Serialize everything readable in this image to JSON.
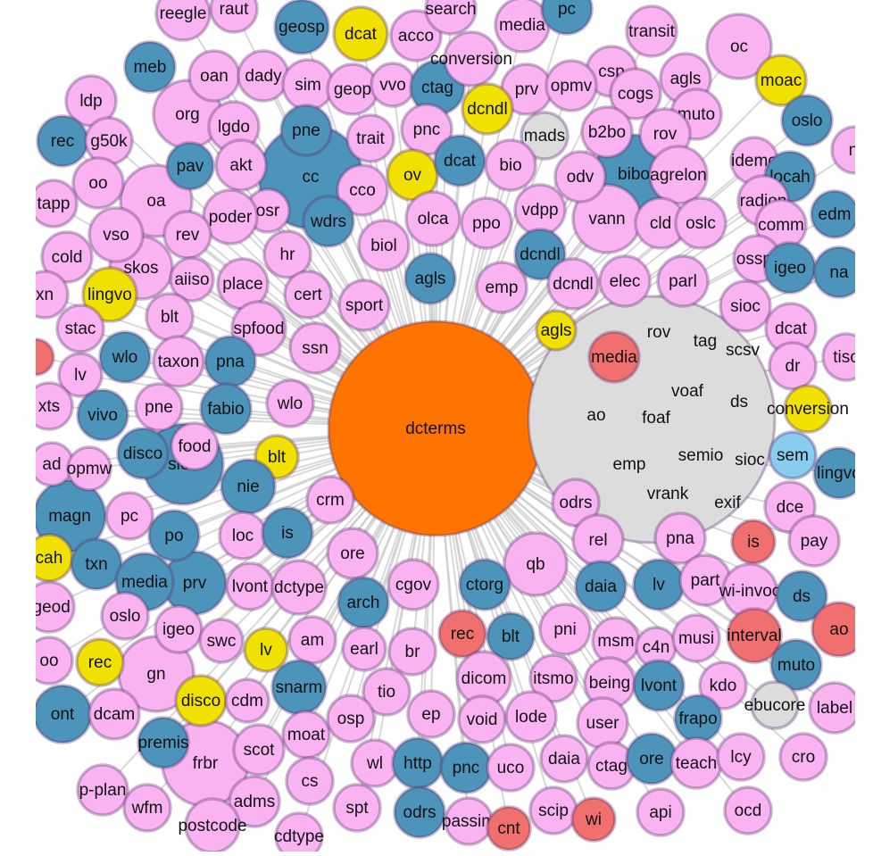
{
  "nodes": [
    {
      "label": "dcterms",
      "color": "#ff7400"
    },
    {
      "color": "#dcdcdc"
    },
    {
      "label": "cc",
      "color": "#4d94bb"
    },
    {
      "label": "frbr",
      "color": "#f9b3f0"
    },
    {
      "label": "sioc",
      "color": "#4d94bb"
    },
    {
      "label": "bibo",
      "color": "#4d94bb"
    },
    {
      "label": "gn",
      "color": "#f9b3f0"
    },
    {
      "label": "magn",
      "color": "#4d94bb"
    },
    {
      "label": "oa",
      "color": "#f9b3f0"
    },
    {
      "label": "org",
      "color": "#f9b3f0"
    },
    {
      "label": "vann",
      "color": "#f9b3f0"
    },
    {
      "label": "oc",
      "color": "#f9b3f0"
    },
    {
      "label": "skos",
      "color": "#f9b3f0"
    },
    {
      "label": "qb",
      "color": "#f9b3f0"
    },
    {
      "label": "prv",
      "color": "#4d94bb"
    },
    {
      "label": "reegle",
      "color": "#f9b3f0"
    },
    {
      "label": "raut",
      "color": "#f9b3f0"
    },
    {
      "label": "geosp",
      "color": "#4d94bb"
    },
    {
      "label": "dcat",
      "color": "#f1e100"
    },
    {
      "label": "acco",
      "color": "#f9b3f0"
    },
    {
      "label": "search",
      "color": "#f9b3f0"
    },
    {
      "label": "media",
      "color": "#f9b3f0"
    },
    {
      "label": "pc",
      "color": "#4d94bb"
    },
    {
      "label": "transit",
      "color": "#f9b3f0"
    },
    {
      "label": "meb",
      "color": "#4d94bb"
    },
    {
      "label": "oan",
      "color": "#f9b3f0"
    },
    {
      "label": "dady",
      "color": "#f9b3f0"
    },
    {
      "label": "sim",
      "color": "#f9b3f0"
    },
    {
      "label": "geop",
      "color": "#f9b3f0"
    },
    {
      "label": "vvo",
      "color": "#f9b3f0"
    },
    {
      "label": "ctag",
      "color": "#4d94bb"
    },
    {
      "label": "conversion",
      "color": "#f9b3f0"
    },
    {
      "label": "csp",
      "color": "#f9b3f0"
    },
    {
      "label": "agls",
      "color": "#f9b3f0"
    },
    {
      "label": "moac",
      "color": "#f1e100"
    },
    {
      "label": "ldp",
      "color": "#f9b3f0"
    },
    {
      "label": "prv",
      "color": "#f9b3f0"
    },
    {
      "label": "opmv",
      "color": "#f9b3f0"
    },
    {
      "label": "cogs",
      "color": "#f9b3f0"
    },
    {
      "label": "dcndl",
      "color": "#f1e100"
    },
    {
      "label": "muto",
      "color": "#f9b3f0"
    },
    {
      "label": "oslo",
      "color": "#4d94bb"
    },
    {
      "label": "mads",
      "color": "#dcdcdc"
    },
    {
      "label": "b2bo",
      "color": "#f9b3f0"
    },
    {
      "label": "rov",
      "color": "#f9b3f0"
    },
    {
      "label": "lgdo",
      "color": "#f9b3f0"
    },
    {
      "label": "pne",
      "color": "#4d94bb"
    },
    {
      "label": "trait",
      "color": "#f9b3f0"
    },
    {
      "label": "pnc",
      "color": "#f9b3f0"
    },
    {
      "label": "rec",
      "color": "#4d94bb"
    },
    {
      "label": "g50k",
      "color": "#f9b3f0"
    },
    {
      "label": "ni",
      "color": "#f9b3f0"
    },
    {
      "label": "pav",
      "color": "#4d94bb"
    },
    {
      "label": "akt",
      "color": "#f9b3f0"
    },
    {
      "label": "oo",
      "color": "#f9b3f0"
    },
    {
      "label": "cco",
      "color": "#f9b3f0"
    },
    {
      "label": "ov",
      "color": "#f1e100"
    },
    {
      "label": "dcat",
      "color": "#4d94bb"
    },
    {
      "label": "bio",
      "color": "#f9b3f0"
    },
    {
      "label": "odv",
      "color": "#f9b3f0"
    },
    {
      "label": "agrelon",
      "color": "#f9b3f0"
    },
    {
      "label": "idemo",
      "color": "#f9b3f0"
    },
    {
      "label": "locah",
      "color": "#4d94bb"
    },
    {
      "label": "tapp",
      "color": "#f9b3f0"
    },
    {
      "label": "osr",
      "color": "#f9b3f0"
    },
    {
      "label": "poder",
      "color": "#f9b3f0"
    },
    {
      "label": "wdrs",
      "color": "#4d94bb"
    },
    {
      "label": "olca",
      "color": "#f9b3f0"
    },
    {
      "label": "ppo",
      "color": "#f9b3f0"
    },
    {
      "label": "vdpp",
      "color": "#f9b3f0"
    },
    {
      "label": "cld",
      "color": "#f9b3f0"
    },
    {
      "label": "oslc",
      "color": "#f9b3f0"
    },
    {
      "label": "radion",
      "color": "#f9b3f0"
    },
    {
      "label": "comm",
      "color": "#f9b3f0"
    },
    {
      "label": "edm",
      "color": "#4d94bb"
    },
    {
      "label": "vso",
      "color": "#f9b3f0"
    },
    {
      "label": "rev",
      "color": "#f9b3f0"
    },
    {
      "label": "cold",
      "color": "#f9b3f0"
    },
    {
      "label": "hr",
      "color": "#f9b3f0"
    },
    {
      "label": "biol",
      "color": "#f9b3f0"
    },
    {
      "label": "dcndl",
      "color": "#4d94bb"
    },
    {
      "label": "osspr",
      "color": "#f9b3f0"
    },
    {
      "label": "igeo",
      "color": "#4d94bb"
    },
    {
      "label": "na",
      "color": "#4d94bb"
    },
    {
      "label": "lingvo",
      "color": "#f1e100"
    },
    {
      "label": "aiiso",
      "color": "#f9b3f0"
    },
    {
      "label": "place",
      "color": "#f9b3f0"
    },
    {
      "label": "cert",
      "color": "#f9b3f0"
    },
    {
      "label": "sport",
      "color": "#f9b3f0"
    },
    {
      "label": "agls",
      "color": "#4d94bb"
    },
    {
      "label": "emp",
      "color": "#f9b3f0"
    },
    {
      "label": "dcndl",
      "color": "#f9b3f0"
    },
    {
      "label": "elec",
      "color": "#f9b3f0"
    },
    {
      "label": "parl",
      "color": "#f9b3f0"
    },
    {
      "label": "sioc",
      "color": "#f9b3f0"
    },
    {
      "label": "xn",
      "color": "#f9b3f0"
    },
    {
      "label": "stac",
      "color": "#f9b3f0"
    },
    {
      "label": "blt",
      "color": "#f9b3f0"
    },
    {
      "label": "spfood",
      "color": "#f9b3f0"
    },
    {
      "label": "ssn",
      "color": "#f9b3f0"
    },
    {
      "label": "agls",
      "color": "#f1e100"
    },
    {
      "label": "dcat",
      "color": "#f9b3f0"
    },
    {
      "color": "#f07070"
    },
    {
      "label": "lv",
      "color": "#f9b3f0"
    },
    {
      "label": "wlo",
      "color": "#4d94bb"
    },
    {
      "label": "taxon",
      "color": "#f9b3f0"
    },
    {
      "label": "pna",
      "color": "#4d94bb"
    },
    {
      "label": "dr",
      "color": "#f9b3f0"
    },
    {
      "label": "tiso",
      "color": "#f9b3f0"
    },
    {
      "label": "xts",
      "color": "#f9b3f0"
    },
    {
      "label": "vivo",
      "color": "#4d94bb"
    },
    {
      "label": "pne",
      "color": "#f9b3f0"
    },
    {
      "label": "fabio",
      "color": "#4d94bb"
    },
    {
      "label": "wlo",
      "color": "#f9b3f0"
    },
    {
      "label": "conversion",
      "color": "#f1e100"
    },
    {
      "label": "disco",
      "color": "#4d94bb"
    },
    {
      "label": "food",
      "color": "#f9b3f0"
    },
    {
      "label": "blt",
      "color": "#f1e100"
    },
    {
      "label": "ad",
      "color": "#f9b3f0"
    },
    {
      "label": "opmw",
      "color": "#f9b3f0"
    },
    {
      "label": "sem",
      "color": "#88ccee"
    },
    {
      "label": "lingvo",
      "color": "#4d94bb"
    },
    {
      "label": "nie",
      "color": "#4d94bb"
    },
    {
      "label": "crm",
      "color": "#f9b3f0"
    },
    {
      "label": "pc",
      "color": "#f9b3f0"
    },
    {
      "label": "po",
      "color": "#4d94bb"
    },
    {
      "label": "loc",
      "color": "#f9b3f0"
    },
    {
      "label": "is",
      "color": "#4d94bb"
    },
    {
      "label": "ore",
      "color": "#f9b3f0"
    },
    {
      "label": "odrs",
      "color": "#f9b3f0"
    },
    {
      "label": "dce",
      "color": "#f9b3f0"
    },
    {
      "label": "rel",
      "color": "#f9b3f0"
    },
    {
      "label": "pna",
      "color": "#f9b3f0"
    },
    {
      "label": "is",
      "color": "#f07070"
    },
    {
      "label": "pay",
      "color": "#f9b3f0"
    },
    {
      "label": "cah",
      "color": "#f1e100"
    },
    {
      "label": "txn",
      "color": "#4d94bb"
    },
    {
      "label": "media",
      "color": "#4d94bb"
    },
    {
      "label": "lvont",
      "color": "#f9b3f0"
    },
    {
      "label": "dctype",
      "color": "#f9b3f0"
    },
    {
      "label": "arch",
      "color": "#4d94bb"
    },
    {
      "label": "cgov",
      "color": "#f9b3f0"
    },
    {
      "label": "ctorg",
      "color": "#4d94bb"
    },
    {
      "label": "daia",
      "color": "#4d94bb"
    },
    {
      "label": "lv",
      "color": "#4d94bb"
    },
    {
      "label": "part",
      "color": "#f9b3f0"
    },
    {
      "label": "wi-invoc",
      "color": "#f9b3f0"
    },
    {
      "label": "ds",
      "color": "#4d94bb"
    },
    {
      "label": "tgeod",
      "color": "#f9b3f0"
    },
    {
      "label": "oslo",
      "color": "#f9b3f0"
    },
    {
      "label": "igeo",
      "color": "#f9b3f0"
    },
    {
      "label": "swc",
      "color": "#f9b3f0"
    },
    {
      "label": "lv",
      "color": "#f1e100"
    },
    {
      "label": "am",
      "color": "#f9b3f0"
    },
    {
      "label": "earl",
      "color": "#f9b3f0"
    },
    {
      "label": "br",
      "color": "#f9b3f0"
    },
    {
      "label": "rec",
      "color": "#f07070"
    },
    {
      "label": "blt",
      "color": "#4d94bb"
    },
    {
      "label": "pni",
      "color": "#f9b3f0"
    },
    {
      "label": "msm",
      "color": "#f9b3f0"
    },
    {
      "label": "c4n",
      "color": "#f9b3f0"
    },
    {
      "label": "musi",
      "color": "#f9b3f0"
    },
    {
      "label": "interval",
      "color": "#f07070"
    },
    {
      "label": "ao",
      "color": "#f07070"
    },
    {
      "label": "oo",
      "color": "#f9b3f0"
    },
    {
      "label": "rec",
      "color": "#f1e100"
    },
    {
      "label": "muto",
      "color": "#4d94bb"
    },
    {
      "label": "disco",
      "color": "#f1e100"
    },
    {
      "label": "cdm",
      "color": "#f9b3f0"
    },
    {
      "label": "snarm",
      "color": "#4d94bb"
    },
    {
      "label": "tio",
      "color": "#f9b3f0"
    },
    {
      "label": "dicom",
      "color": "#f9b3f0"
    },
    {
      "label": "itsmo",
      "color": "#f9b3f0"
    },
    {
      "label": "being",
      "color": "#f9b3f0"
    },
    {
      "label": "lvont",
      "color": "#4d94bb"
    },
    {
      "label": "kdo",
      "color": "#f9b3f0"
    },
    {
      "label": "ont",
      "color": "#4d94bb"
    },
    {
      "label": "dcam",
      "color": "#f9b3f0"
    },
    {
      "label": "moat",
      "color": "#f9b3f0"
    },
    {
      "label": "osp",
      "color": "#f9b3f0"
    },
    {
      "label": "ep",
      "color": "#f9b3f0"
    },
    {
      "label": "void",
      "color": "#f9b3f0"
    },
    {
      "label": "lode",
      "color": "#f9b3f0"
    },
    {
      "label": "user",
      "color": "#f9b3f0"
    },
    {
      "label": "frapo",
      "color": "#4d94bb"
    },
    {
      "label": "ebucore",
      "color": "#dcdcdc"
    },
    {
      "label": "label",
      "color": "#f9b3f0"
    },
    {
      "label": "premis",
      "color": "#4d94bb"
    },
    {
      "label": "scot",
      "color": "#f9b3f0"
    },
    {
      "label": "cs",
      "color": "#f9b3f0"
    },
    {
      "label": "wl",
      "color": "#f9b3f0"
    },
    {
      "label": "http",
      "color": "#4d94bb"
    },
    {
      "label": "pnc",
      "color": "#4d94bb"
    },
    {
      "label": "uco",
      "color": "#f9b3f0"
    },
    {
      "label": "daia",
      "color": "#f9b3f0"
    },
    {
      "label": "ctag",
      "color": "#f9b3f0"
    },
    {
      "label": "ore",
      "color": "#4d94bb"
    },
    {
      "label": "teach",
      "color": "#f9b3f0"
    },
    {
      "label": "lcy",
      "color": "#f9b3f0"
    },
    {
      "label": "cro",
      "color": "#f9b3f0"
    },
    {
      "label": "p-plan",
      "color": "#f9b3f0"
    },
    {
      "label": "adms",
      "color": "#f9b3f0"
    },
    {
      "label": "spt",
      "color": "#f9b3f0"
    },
    {
      "label": "odrs",
      "color": "#4d94bb"
    },
    {
      "label": "passim",
      "color": "#f9b3f0"
    },
    {
      "label": "cnt",
      "color": "#f07070"
    },
    {
      "label": "scip",
      "color": "#f9b3f0"
    },
    {
      "label": "wi",
      "color": "#f07070"
    },
    {
      "label": "api",
      "color": "#f9b3f0"
    },
    {
      "label": "ocd",
      "color": "#f9b3f0"
    },
    {
      "label": "wfm",
      "color": "#f9b3f0"
    },
    {
      "label": "postcode",
      "color": "#f9b3f0"
    },
    {
      "label": "cdtype",
      "color": "#f9b3f0"
    },
    {
      "label": "media",
      "color": "#f07070"
    },
    {
      "label": "rov"
    },
    {
      "label": "tag"
    },
    {
      "label": "scsv"
    },
    {
      "label": "voaf"
    },
    {
      "label": "ds"
    },
    {
      "label": "ao"
    },
    {
      "label": "foaf"
    },
    {
      "label": "emp"
    },
    {
      "label": "semio"
    },
    {
      "label": "sioc"
    },
    {
      "label": "vrank"
    },
    {
      "label": "exif"
    }
  ]
}
